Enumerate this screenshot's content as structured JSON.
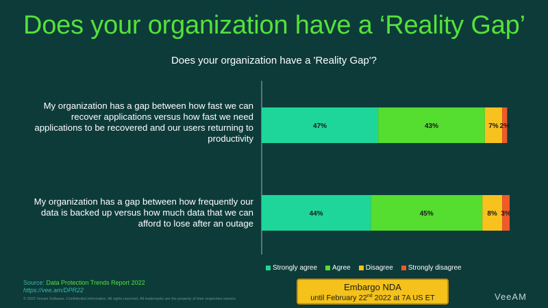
{
  "slide": {
    "title": "Does your organization have a ‘Reality Gap’"
  },
  "chart_data": {
    "type": "bar",
    "orientation": "horizontal",
    "stacked": true,
    "title": "Does your organization have a 'Reality Gap'?",
    "categories": [
      "My organization has a gap between how fast we can recover applications versus how fast we need applications to be recovered and our users returning to productivity",
      "My organization has a gap between how frequently our data is backed up versus how much data that we can afford to lose after an outage"
    ],
    "series": [
      {
        "name": "Strongly agree",
        "color": "#1fd69a",
        "values": [
          47,
          44
        ],
        "labels": [
          "47%",
          "44%"
        ]
      },
      {
        "name": "Agree",
        "color": "#55dd2f",
        "values": [
          43,
          45
        ],
        "labels": [
          "43%",
          "45%"
        ]
      },
      {
        "name": "Disagree",
        "color": "#f7c21e",
        "values": [
          7,
          8
        ],
        "labels": [
          "7%",
          "8%"
        ]
      },
      {
        "name": "Strongly disagree",
        "color": "#f05a28",
        "values": [
          2,
          3
        ],
        "labels": [
          "2%",
          "3%"
        ]
      }
    ],
    "xlim": [
      0,
      100
    ],
    "grid": false,
    "legend": "bottom"
  },
  "source": {
    "prefix": "Source: ",
    "title": "Data Protection Trends Report 2022",
    "url": "https://vee.am/DPR22"
  },
  "copyright": "© 2022 Veeam Software. Confidential information. All rights reserved. All trademarks are the property of their respective owners.",
  "embargo": {
    "title": "Embargo NDA",
    "date_prefix": "until February 22",
    "date_sup": "nd",
    "date_suffix": " 2022 at 7A US ET"
  },
  "logo": "VeeAM"
}
